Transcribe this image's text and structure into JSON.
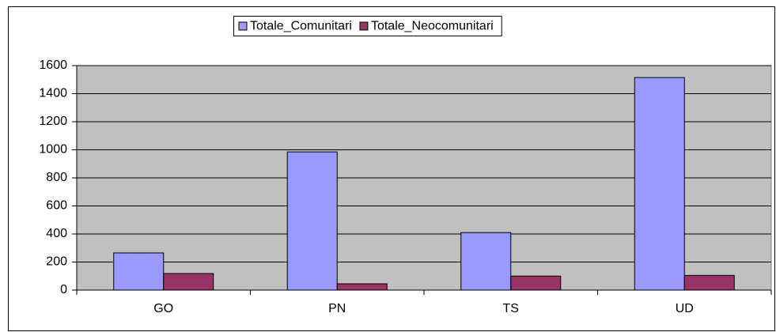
{
  "chart_data": {
    "type": "bar",
    "categories": [
      "GO",
      "PN",
      "TS",
      "UD"
    ],
    "series": [
      {
        "name": "Totale_Comunitari",
        "color": "#9999ff",
        "values": [
          265,
          985,
          410,
          1515
        ]
      },
      {
        "name": "Totale_Neocomunitari",
        "color": "#993366",
        "values": [
          118,
          45,
          100,
          105
        ]
      }
    ],
    "ylim": [
      0,
      1600
    ],
    "yticks": [
      0,
      200,
      400,
      600,
      800,
      1000,
      1200,
      1400,
      1600
    ],
    "grid": true,
    "legend": "top",
    "plot_background": "#c0c0c0"
  }
}
